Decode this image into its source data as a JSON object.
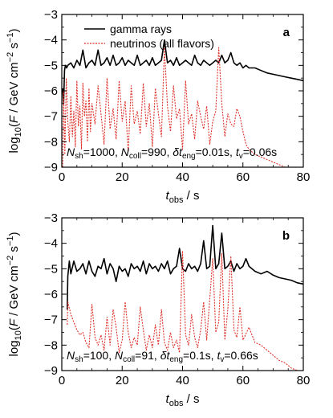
{
  "chart_data": [
    {
      "type": "line",
      "panel_label": "a",
      "xlabel_main": "t",
      "xlabel_sub": "obs",
      "xlabel_rest": " / s",
      "ylabel": "log10(F / GeV cm-2 s-1)",
      "xlim": [
        0,
        80
      ],
      "ylim": [
        -9,
        -3
      ],
      "xticks": [
        "0",
        "20",
        "40",
        "60",
        "80"
      ],
      "yticks": [
        "-9",
        "-8",
        "-7",
        "-6",
        "-5",
        "-4",
        "-3"
      ],
      "legend_position": "top-left",
      "annotation": {
        "n_sh": "1000",
        "n_coll": "990",
        "dt_eng": "0.01s",
        "t_v": "0.06s"
      },
      "series": [
        {
          "name": "gamma rays",
          "color": "#000000",
          "style": "solid",
          "x": [
            0.3,
            0.6,
            0.9,
            1.2,
            1.6,
            2,
            3,
            4,
            5,
            6,
            7,
            8,
            9,
            10,
            11,
            12,
            13,
            14,
            15,
            16,
            17,
            18,
            19,
            20,
            21,
            22,
            23,
            24,
            25,
            26,
            27,
            28,
            29,
            30,
            31,
            32,
            33,
            34,
            35,
            36,
            37,
            38,
            39,
            40,
            41,
            42,
            43,
            44,
            45,
            46,
            47,
            48,
            49,
            50,
            51,
            52,
            53,
            54,
            55,
            56,
            57,
            58,
            59,
            60,
            61,
            62,
            64,
            66,
            68,
            70,
            72,
            74,
            76,
            78,
            80
          ],
          "y": [
            -5.9,
            -6.5,
            -5.2,
            -5.0,
            -5.1,
            -5.0,
            -4.9,
            -5.1,
            -4.8,
            -5.0,
            -4.4,
            -5.1,
            -4.9,
            -4.8,
            -5.0,
            -4.4,
            -5.0,
            -4.9,
            -4.7,
            -5.0,
            -4.6,
            -5.0,
            -4.9,
            -4.7,
            -5.0,
            -4.8,
            -4.9,
            -5.0,
            -4.6,
            -5.0,
            -4.9,
            -4.8,
            -5.0,
            -4.7,
            -5.0,
            -4.9,
            -4.8,
            -4.0,
            -4.9,
            -4.8,
            -5.0,
            -4.7,
            -5.0,
            -4.9,
            -4.8,
            -4.9,
            -5.0,
            -4.6,
            -4.9,
            -5.0,
            -4.8,
            -4.9,
            -5.0,
            -4.9,
            -4.8,
            -4.9,
            -4.6,
            -4.9,
            -4.8,
            -4.5,
            -4.9,
            -5.0,
            -4.9,
            -5.1,
            -5.0,
            -5.1,
            -5.1,
            -5.2,
            -5.3,
            -5.35,
            -5.4,
            -5.45,
            -5.5,
            -5.55,
            -5.6
          ]
        },
        {
          "name": "neutrinos (all flavors)",
          "color": "#e0302a",
          "style": "dotted",
          "x": [
            0.3,
            0.6,
            1,
            1.5,
            2,
            2.5,
            3,
            3.5,
            4,
            4.5,
            5,
            5.5,
            6,
            6.5,
            7,
            7.5,
            8,
            8.5,
            9,
            9.5,
            10,
            11,
            12,
            13,
            14,
            15,
            16,
            17,
            18,
            19,
            20,
            21,
            22,
            23,
            24,
            25,
            26,
            27,
            28,
            29,
            30,
            31,
            32,
            33,
            34,
            35,
            36,
            37,
            38,
            39,
            40,
            41,
            42,
            43,
            44,
            45,
            46,
            47,
            48,
            49,
            50,
            51,
            52,
            53,
            54,
            55,
            56,
            57,
            58,
            59,
            60,
            61,
            62,
            64,
            66,
            68,
            70,
            72,
            74,
            76,
            78
          ],
          "y": [
            -9.0,
            -6.0,
            -8.5,
            -5.5,
            -7.2,
            -8.0,
            -6.2,
            -7.8,
            -6.8,
            -8.2,
            -5.6,
            -7.4,
            -6.6,
            -8.3,
            -5.7,
            -7.0,
            -6.4,
            -8.0,
            -5.9,
            -7.6,
            -6.5,
            -7.3,
            -5.8,
            -6.9,
            -8.1,
            -5.5,
            -7.5,
            -6.7,
            -7.9,
            -5.6,
            -7.2,
            -6.4,
            -8.4,
            -5.8,
            -7.3,
            -6.8,
            -7.7,
            -5.7,
            -7.4,
            -6.5,
            -8.2,
            -5.9,
            -6.9,
            -7.8,
            -4.3,
            -6.6,
            -7.6,
            -5.8,
            -7.1,
            -6.7,
            -8.3,
            -5.6,
            -7.3,
            -6.9,
            -7.9,
            -6.4,
            -7.0,
            -7.5,
            -6.6,
            -8.1,
            -7.2,
            -6.8,
            -4.3,
            -6.5,
            -7.8,
            -6.9,
            -7.3,
            -7.4,
            -6.7,
            -7.0,
            -7.6,
            -8.1,
            -8.3,
            -8.5,
            -8.6,
            -8.7,
            -8.8,
            -8.9,
            -9.0,
            -9.1,
            -9.2
          ]
        }
      ]
    },
    {
      "type": "line",
      "panel_label": "b",
      "xlabel_main": "t",
      "xlabel_sub": "obs",
      "xlabel_rest": " / s",
      "ylabel": "log10(F / GeV cm-2 s-1)",
      "xlim": [
        0,
        80
      ],
      "ylim": [
        -9,
        -3
      ],
      "xticks": [
        "0",
        "20",
        "40",
        "60",
        "80"
      ],
      "yticks": [
        "-9",
        "-8",
        "-7",
        "-6",
        "-5",
        "-4",
        "-3"
      ],
      "annotation": {
        "n_sh": "100",
        "n_coll": "91",
        "dt_eng": "0.1s",
        "t_v": "0.66s"
      },
      "series": [
        {
          "name": "gamma rays",
          "color": "#000000",
          "style": "solid",
          "x": [
            1.8,
            2,
            2.5,
            3,
            4,
            5,
            6,
            7,
            8,
            9,
            10,
            11,
            12,
            13,
            14,
            15,
            16,
            17,
            18,
            19,
            20,
            21,
            22,
            23,
            24,
            25,
            26,
            27,
            28,
            29,
            30,
            31,
            32,
            33,
            34,
            35,
            36,
            37,
            38,
            39,
            40,
            41,
            42,
            43,
            44,
            45,
            46,
            47,
            48,
            49,
            50,
            51,
            52,
            53,
            54,
            55,
            56,
            57,
            58,
            59,
            60,
            61,
            62,
            64,
            66,
            68,
            70,
            72,
            74,
            76,
            78,
            80
          ],
          "y": [
            -6.6,
            -5.3,
            -4.7,
            -5.2,
            -4.7,
            -5.1,
            -5.0,
            -4.8,
            -5.2,
            -4.7,
            -5.1,
            -5.3,
            -4.9,
            -5.0,
            -4.6,
            -5.2,
            -4.8,
            -5.0,
            -5.5,
            -4.9,
            -5.1,
            -5.0,
            -5.3,
            -4.8,
            -5.0,
            -4.9,
            -5.1,
            -4.7,
            -5.2,
            -4.8,
            -5.0,
            -4.9,
            -5.1,
            -4.8,
            -5.0,
            -4.7,
            -5.2,
            -5.0,
            -4.9,
            -4.2,
            -5.0,
            -5.1,
            -4.8,
            -5.0,
            -4.9,
            -5.1,
            -4.8,
            -3.9,
            -5.0,
            -4.9,
            -3.3,
            -5.0,
            -4.8,
            -3.6,
            -5.0,
            -4.9,
            -4.7,
            -5.1,
            -4.8,
            -5.0,
            -4.9,
            -4.6,
            -4.9,
            -5.1,
            -5.2,
            -5.1,
            -5.25,
            -5.35,
            -5.4,
            -5.45,
            -5.55,
            -5.6
          ]
        },
        {
          "name": "neutrinos (all flavors)",
          "color": "#e0302a",
          "style": "dotted",
          "x": [
            1.8,
            2,
            3,
            4,
            5,
            6,
            7,
            8,
            9,
            10,
            11,
            12,
            13,
            14,
            15,
            16,
            17,
            18,
            19,
            20,
            21,
            22,
            23,
            24,
            25,
            26,
            27,
            28,
            29,
            30,
            31,
            32,
            33,
            34,
            35,
            36,
            37,
            38,
            39,
            40,
            41,
            42,
            43,
            44,
            45,
            46,
            47,
            48,
            49,
            50,
            51,
            52,
            53,
            54,
            55,
            56,
            57,
            58,
            59,
            60,
            62,
            64,
            66,
            68,
            70,
            72,
            74,
            76,
            78
          ],
          "y": [
            -7.2,
            -6.3,
            -6.8,
            -7.1,
            -7.4,
            -7.6,
            -7.5,
            -7.9,
            -8.1,
            -6.4,
            -7.7,
            -8.0,
            -7.6,
            -8.2,
            -6.9,
            -8.0,
            -6.6,
            -7.3,
            -8.3,
            -7.8,
            -6.3,
            -7.5,
            -8.1,
            -7.7,
            -8.0,
            -6.5,
            -7.4,
            -8.2,
            -7.6,
            -8.1,
            -7.2,
            -8.0,
            -6.6,
            -7.9,
            -8.2,
            -7.5,
            -8.1,
            -7.8,
            -8.3,
            -4.3,
            -7.6,
            -8.0,
            -6.8,
            -7.7,
            -8.1,
            -7.4,
            -6.3,
            -7.8,
            -6.2,
            -4.6,
            -7.5,
            -7.1,
            -4.4,
            -7.8,
            -6.6,
            -4.5,
            -7.4,
            -7.7,
            -6.5,
            -7.8,
            -7.3,
            -7.9,
            -8.0,
            -8.2,
            -8.4,
            -8.6,
            -8.7,
            -8.9,
            -9.0
          ]
        }
      ]
    }
  ]
}
